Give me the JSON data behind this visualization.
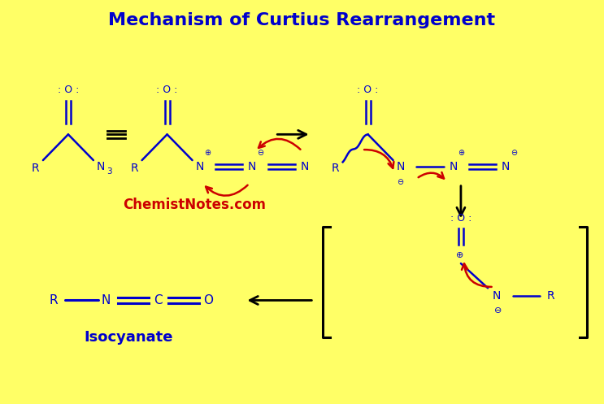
{
  "title": "Mechanism of Curtius Rearrangement",
  "title_color": "#0000CC",
  "title_fontsize": 16,
  "bg_color": "#FFFF66",
  "blue": "#0000CC",
  "red": "#CC0000",
  "black": "#000000",
  "watermark": "ChemistNotes.com",
  "watermark_color": "#CC0000",
  "isocyanate_label": "Isocyanate",
  "xlim": [
    0,
    10
  ],
  "ylim": [
    0,
    6.5
  ]
}
